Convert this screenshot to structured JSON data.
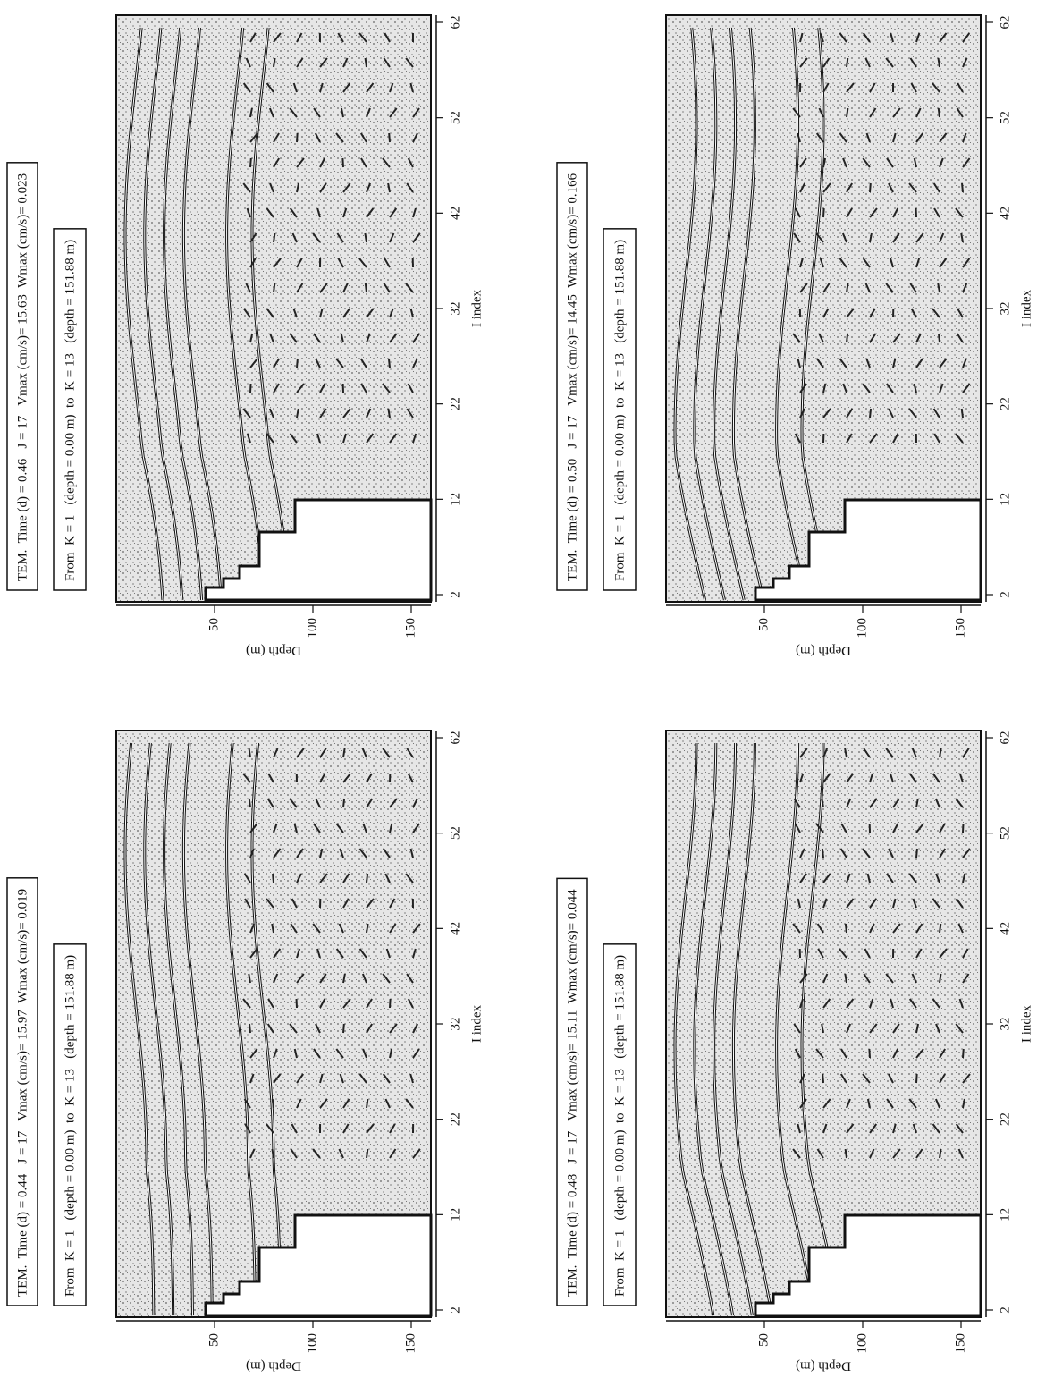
{
  "chart_data": [
    {
      "type": "contour",
      "title": "TEM.  Time (d) = 0.44   J = 17   Vmax (cm/s)= 15.97  Wmax (cm/s)= 0.019",
      "subtitle": "From  K = 1   (depth = 0.00 m)  to  K = 13   (depth = 151.88 m)",
      "x_label": "I index",
      "y_label": "Depth (m)",
      "xlim": [
        2,
        62
      ],
      "xticks": [
        2,
        12,
        22,
        32,
        42,
        52,
        62
      ],
      "ylim": [
        0,
        160
      ],
      "yticks": [
        50,
        100,
        150
      ]
    },
    {
      "type": "contour",
      "title": "TEM.  Time (d) = 0.46   J = 17   Vmax (cm/s)= 15.63  Wmax (cm/s)= 0.023",
      "subtitle": "From  K = 1   (depth = 0.00 m)  to  K = 13   (depth = 151.88 m)",
      "x_label": "I index",
      "y_label": "Depth (m)",
      "xlim": [
        2,
        62
      ],
      "xticks": [
        2,
        12,
        22,
        32,
        42,
        52,
        62
      ],
      "ylim": [
        0,
        160
      ],
      "yticks": [
        50,
        100,
        150
      ]
    },
    {
      "type": "contour",
      "title": "TEM.  Time (d) = 0.48   J = 17   Vmax (cm/s)= 15.11  Wmax (cm/s)= 0.044",
      "subtitle": "From  K = 1   (depth = 0.00 m)  to  K = 13   (depth = 151.88 m)",
      "x_label": "I index",
      "y_label": "Depth (m)",
      "xlim": [
        2,
        62
      ],
      "xticks": [
        2,
        12,
        22,
        32,
        42,
        52,
        62
      ],
      "ylim": [
        0,
        160
      ],
      "yticks": [
        50,
        100,
        150
      ]
    },
    {
      "type": "contour",
      "title": "TEM.  Time (d) = 0.50   J = 17   Vmax (cm/s)= 14.45  Wmax (cm/s)= 0.166",
      "subtitle": "From  K = 1   (depth = 0.00 m)  to  K = 13   (depth = 151.88 m)",
      "x_label": "I index",
      "y_label": "Depth (m)",
      "xlim": [
        2,
        62
      ],
      "xticks": [
        2,
        12,
        22,
        32,
        42,
        52,
        62
      ],
      "ylim": [
        0,
        160
      ],
      "yticks": [
        50,
        100,
        150
      ]
    }
  ]
}
